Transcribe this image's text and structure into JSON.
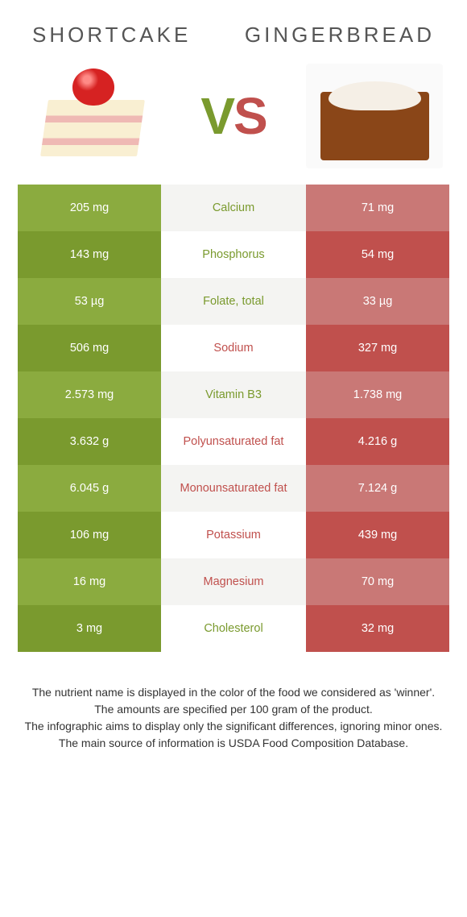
{
  "header": {
    "left_title": "Shortcake",
    "right_title": "Gingerbread",
    "vs_left": "V",
    "vs_right": "S"
  },
  "colors": {
    "green": "#7a9a2e",
    "green_light": "#8bab3f",
    "red": "#c0504d",
    "red_light": "#c97876",
    "row_bg": "#f4f4f2",
    "row_bg_alt": "#ffffff",
    "text_body": "#333333"
  },
  "rows": [
    {
      "label": "Calcium",
      "left": "205 mg",
      "right": "71 mg",
      "winner": "left"
    },
    {
      "label": "Phosphorus",
      "left": "143 mg",
      "right": "54 mg",
      "winner": "left"
    },
    {
      "label": "Folate, total",
      "left": "53 µg",
      "right": "33 µg",
      "winner": "left"
    },
    {
      "label": "Sodium",
      "left": "506 mg",
      "right": "327 mg",
      "winner": "right"
    },
    {
      "label": "Vitamin B3",
      "left": "2.573 mg",
      "right": "1.738 mg",
      "winner": "left"
    },
    {
      "label": "Polyunsaturated fat",
      "left": "3.632 g",
      "right": "4.216 g",
      "winner": "right"
    },
    {
      "label": "Monounsaturated fat",
      "left": "6.045 g",
      "right": "7.124 g",
      "winner": "right"
    },
    {
      "label": "Potassium",
      "left": "106 mg",
      "right": "439 mg",
      "winner": "right"
    },
    {
      "label": "Magnesium",
      "left": "16 mg",
      "right": "70 mg",
      "winner": "right"
    },
    {
      "label": "Cholesterol",
      "left": "3 mg",
      "right": "32 mg",
      "winner": "left"
    }
  ],
  "footer": {
    "line1": "The nutrient name is displayed in the color of the food we considered as 'winner'.",
    "line2": "The amounts are specified per 100 gram of the product.",
    "line3": "The infographic aims to display only the significant differences, ignoring minor ones.",
    "line4": "The main source of information is USDA Food Composition Database."
  }
}
